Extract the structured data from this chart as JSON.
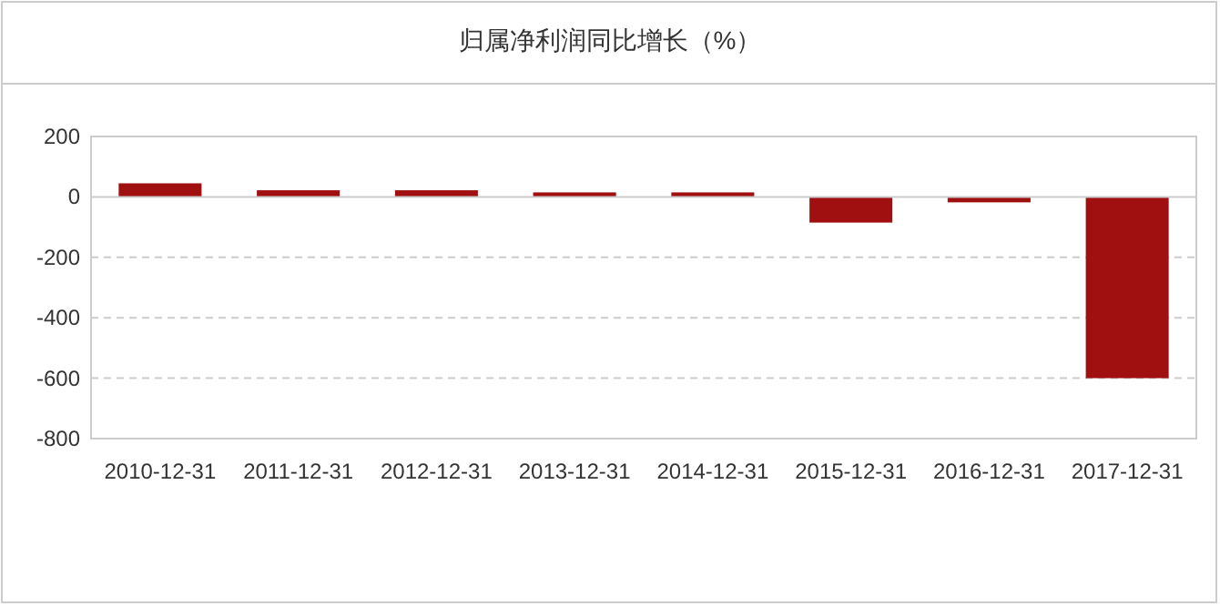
{
  "chart_data": {
    "type": "bar",
    "title": "归属净利润同比增长（%）",
    "categories": [
      "2010-12-31",
      "2011-12-31",
      "2012-12-31",
      "2013-12-31",
      "2014-12-31",
      "2015-12-31",
      "2016-12-31",
      "2017-12-31"
    ],
    "values": [
      45,
      22,
      22,
      15,
      15,
      -85,
      -18,
      -600
    ],
    "color": "#a01010",
    "ylim": [
      -800,
      200
    ],
    "yticks": [
      -800,
      -600,
      -400,
      -200,
      0,
      200
    ],
    "grid": "y"
  }
}
